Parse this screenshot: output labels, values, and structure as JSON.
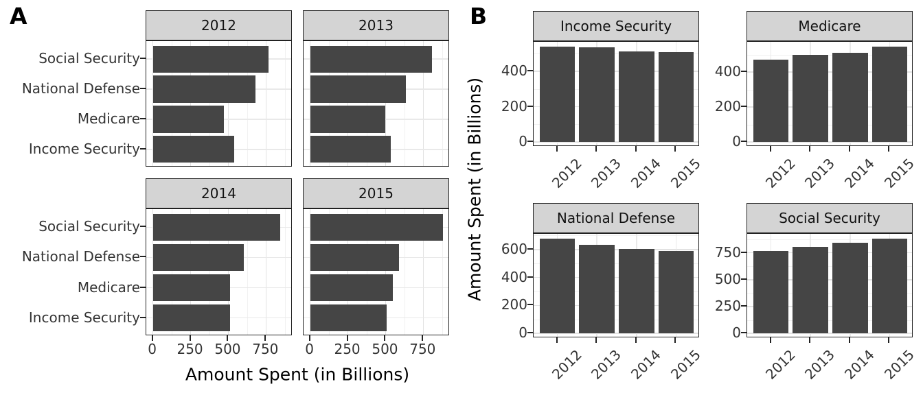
{
  "figure": {
    "panel_a_label": "A",
    "panel_b_label": "B",
    "x_axis_title_a": "Amount Spent (in Billions)",
    "y_axis_title_b": "Amount Spent (in Billions)"
  },
  "colors": {
    "bar": "#454545",
    "strip_background": "#d4d4d4",
    "panel_border": "#222222",
    "grid_major": "#e2e2e2",
    "grid_major_faint": "#e9e9e9",
    "grid_minor": "#f1f1f1",
    "axis_text": "#333333",
    "tick_mark": "#222222"
  },
  "chart_data": [
    {
      "panel": "A",
      "type": "bar",
      "orientation": "horizontal",
      "facet_variable": "year",
      "facets": [
        "2012",
        "2013",
        "2014",
        "2015"
      ],
      "categories_top_to_bottom": [
        "Social Security",
        "National Defense",
        "Medicare",
        "Income Security"
      ],
      "xlabel": "Amount Spent (in Billions)",
      "x_ticks": [
        0,
        250,
        500,
        750
      ],
      "xlim": [
        -44,
        926
      ],
      "grid": "major and minor vertical, major horizontal",
      "series": [
        {
          "name": "2012",
          "values": {
            "Social Security": 768,
            "National Defense": 678,
            "Medicare": 471,
            "Income Security": 541
          }
        },
        {
          "name": "2013",
          "values": {
            "Social Security": 808,
            "National Defense": 633,
            "Medicare": 497,
            "Income Security": 536
          }
        },
        {
          "name": "2014",
          "values": {
            "Social Security": 845,
            "National Defense": 603,
            "Medicare": 511,
            "Income Security": 513
          }
        },
        {
          "name": "2015",
          "values": {
            "Social Security": 882,
            "National Defense": 589,
            "Medicare": 546,
            "Income Security": 508
          }
        }
      ]
    },
    {
      "panel": "B",
      "type": "bar",
      "orientation": "vertical",
      "facet_variable": "category",
      "facets": [
        "Income Security",
        "Medicare",
        "National Defense",
        "Social Security"
      ],
      "x_categories": [
        "2012",
        "2013",
        "2014",
        "2015"
      ],
      "ylabel": "Amount Spent (in Billions)",
      "x_tick_label_angle_deg": 45,
      "grid": "major and minor horizontal, major vertical",
      "y_ticks": {
        "Income Security": [
          0,
          200,
          400
        ],
        "Medicare": [
          0,
          200,
          400
        ],
        "National Defense": [
          0,
          200,
          400,
          600
        ],
        "Social Security": [
          0,
          250,
          500,
          750
        ]
      },
      "series": [
        {
          "name": "Income Security",
          "values": [
            541,
            536,
            513,
            508
          ]
        },
        {
          "name": "Medicare",
          "values": [
            471,
            497,
            511,
            546
          ]
        },
        {
          "name": "National Defense",
          "values": [
            678,
            633,
            603,
            589
          ]
        },
        {
          "name": "Social Security",
          "values": [
            768,
            808,
            845,
            882
          ]
        }
      ]
    }
  ]
}
